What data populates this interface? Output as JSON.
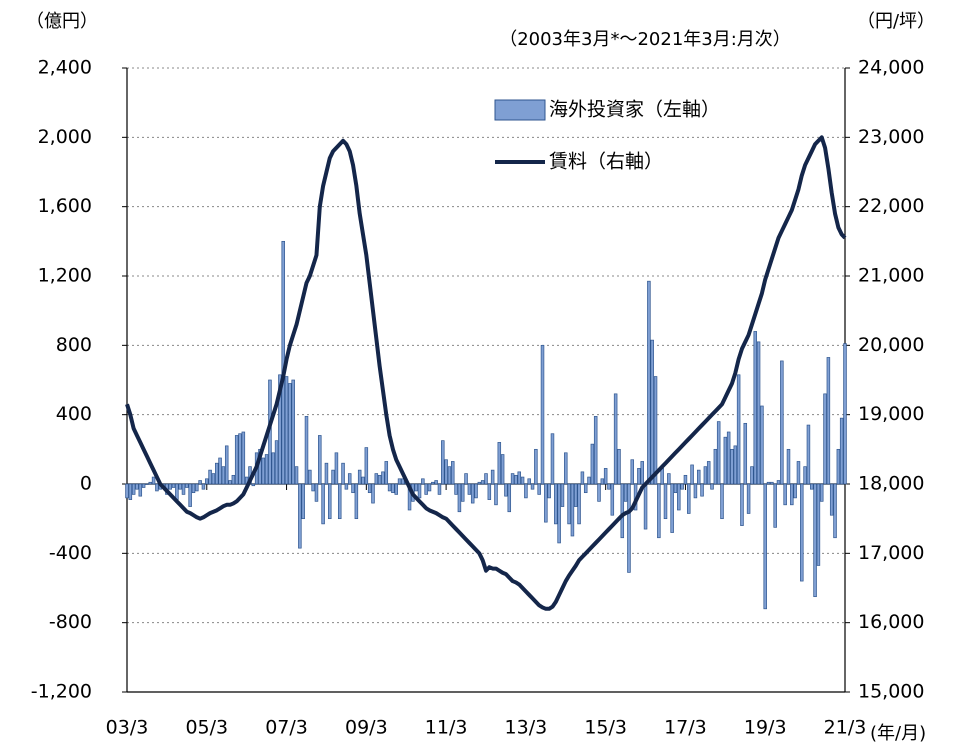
{
  "chart_data": {
    "type": "bar",
    "subtitle": "（2003年3月*～2021年3月:月次）",
    "y_label": "（億円）",
    "y2_label": "（円/坪）",
    "x_label": "(年/月)",
    "categories": [
      "03/3",
      null,
      null,
      null,
      null,
      null,
      null,
      null,
      null,
      null,
      null,
      null,
      null,
      null,
      null,
      null,
      null,
      null,
      null,
      null,
      null,
      null,
      null,
      null,
      "05/3",
      null,
      null,
      null,
      null,
      null,
      null,
      null,
      null,
      null,
      null,
      null,
      null,
      null,
      null,
      null,
      null,
      null,
      null,
      null,
      null,
      null,
      null,
      null,
      "07/3",
      null,
      null,
      null,
      null,
      null,
      null,
      null,
      null,
      null,
      null,
      null,
      null,
      null,
      null,
      null,
      null,
      null,
      null,
      null,
      null,
      null,
      null,
      null,
      "09/3",
      null,
      null,
      null,
      null,
      null,
      null,
      null,
      null,
      null,
      null,
      null,
      null,
      null,
      null,
      null,
      null,
      null,
      null,
      null,
      null,
      null,
      null,
      null,
      "11/3",
      null,
      null,
      null,
      null,
      null,
      null,
      null,
      null,
      null,
      null,
      null,
      null,
      null,
      null,
      null,
      null,
      null,
      null,
      null,
      null,
      null,
      null,
      null,
      "13/3",
      null,
      null,
      null,
      null,
      null,
      null,
      null,
      null,
      null,
      null,
      null,
      null,
      null,
      null,
      null,
      null,
      null,
      null,
      null,
      null,
      null,
      null,
      null,
      "15/3",
      null,
      null,
      null,
      null,
      null,
      null,
      null,
      null,
      null,
      null,
      null,
      null,
      null,
      null,
      null,
      null,
      null,
      null,
      null,
      null,
      null,
      null,
      null,
      "17/3",
      null,
      null,
      null,
      null,
      null,
      null,
      null,
      null,
      null,
      null,
      null,
      null,
      null,
      null,
      null,
      null,
      null,
      null,
      null,
      null,
      null,
      null,
      null,
      "19/3",
      null,
      null,
      null,
      null,
      null,
      null,
      null,
      null,
      null,
      null,
      null,
      null,
      null,
      null,
      null,
      null,
      null,
      null,
      null,
      null,
      null,
      null,
      null,
      "21/3"
    ],
    "series": [
      {
        "name": "海外投資家（左軸）",
        "type": "bar",
        "color": "#7f9fd3",
        "edge": "#2f568f",
        "values": [
          -80,
          -90,
          -60,
          -30,
          -70,
          -20,
          0,
          10,
          40,
          -40,
          -30,
          -20,
          -60,
          -30,
          -20,
          -90,
          -30,
          -60,
          -20,
          -130,
          -50,
          -40,
          20,
          -30,
          30,
          80,
          60,
          120,
          150,
          100,
          220,
          20,
          50,
          280,
          290,
          300,
          40,
          100,
          -10,
          180,
          200,
          150,
          170,
          600,
          180,
          250,
          630,
          1400,
          620,
          580,
          600,
          100,
          -370,
          -200,
          390,
          80,
          -40,
          -100,
          280,
          -230,
          120,
          -200,
          80,
          180,
          -200,
          120,
          -30,
          60,
          -50,
          -200,
          80,
          40,
          210,
          -50,
          -110,
          60,
          50,
          70,
          130,
          -40,
          -50,
          -60,
          30,
          30,
          20,
          -150,
          -100,
          -40,
          -80,
          30,
          -60,
          -40,
          10,
          20,
          -60,
          250,
          140,
          100,
          130,
          -60,
          -160,
          -100,
          60,
          -60,
          -110,
          -80,
          10,
          20,
          60,
          -90,
          80,
          -120,
          240,
          170,
          -70,
          -160,
          60,
          50,
          70,
          40,
          -80,
          30,
          -30,
          200,
          -60,
          800,
          -220,
          -80,
          290,
          -230,
          -340,
          -130,
          180,
          -230,
          -300,
          -130,
          -230,
          70,
          -50,
          40,
          230,
          390,
          -100,
          30,
          90,
          -30,
          -180,
          520,
          200,
          -310,
          -100,
          -510,
          140,
          -150,
          90,
          130,
          -260,
          1170,
          830,
          620,
          -310,
          90,
          -200,
          60,
          -280,
          -50,
          -150,
          -30,
          50,
          -170,
          110,
          -80,
          80,
          -70,
          100,
          130,
          -30,
          200,
          360,
          -200,
          270,
          300,
          200,
          220,
          630,
          -240,
          350,
          -170,
          100,
          880,
          820,
          450,
          -720,
          10,
          10,
          -250,
          20,
          710,
          -120,
          200,
          -120,
          -80,
          130,
          -560,
          100,
          340,
          -30,
          -650,
          -470,
          -100,
          520,
          730,
          -180,
          -310,
          200,
          380,
          810
        ]
      },
      {
        "name": "賃料（右軸）",
        "type": "line",
        "axis": "y2",
        "color": "#14264a",
        "values": [
          19150,
          19000,
          18800,
          18700,
          18600,
          18500,
          18400,
          18300,
          18200,
          18100,
          18000,
          17950,
          17900,
          17850,
          17800,
          17750,
          17700,
          17650,
          17600,
          17580,
          17550,
          17520,
          17500,
          17520,
          17550,
          17580,
          17600,
          17620,
          17650,
          17680,
          17700,
          17700,
          17720,
          17750,
          17800,
          17850,
          17950,
          18050,
          18150,
          18250,
          18400,
          18550,
          18700,
          18850,
          19000,
          19150,
          19350,
          19550,
          19800,
          20000,
          20150,
          20300,
          20500,
          20700,
          20900,
          21000,
          21150,
          21300,
          22000,
          22300,
          22500,
          22700,
          22800,
          22850,
          22900,
          22950,
          22900,
          22800,
          22600,
          22300,
          21900,
          21600,
          21300,
          20900,
          20500,
          20100,
          19700,
          19350,
          19000,
          18700,
          18500,
          18350,
          18250,
          18150,
          18050,
          17950,
          17850,
          17800,
          17750,
          17700,
          17650,
          17620,
          17600,
          17580,
          17550,
          17520,
          17500,
          17450,
          17400,
          17350,
          17300,
          17250,
          17200,
          17150,
          17100,
          17050,
          17000,
          16900,
          16750,
          16800,
          16780,
          16780,
          16750,
          16720,
          16700,
          16650,
          16600,
          16580,
          16550,
          16500,
          16450,
          16400,
          16350,
          16300,
          16250,
          16220,
          16200,
          16200,
          16230,
          16300,
          16400,
          16500,
          16600,
          16680,
          16750,
          16820,
          16900,
          16950,
          17000,
          17050,
          17100,
          17150,
          17200,
          17250,
          17300,
          17350,
          17400,
          17450,
          17500,
          17550,
          17580,
          17600,
          17650,
          17750,
          17850,
          17950,
          18000,
          18050,
          18100,
          18150,
          18200,
          18250,
          18300,
          18350,
          18400,
          18450,
          18500,
          18550,
          18600,
          18650,
          18700,
          18750,
          18800,
          18850,
          18900,
          18950,
          19000,
          19050,
          19100,
          19150,
          19250,
          19350,
          19450,
          19600,
          19800,
          19950,
          20050,
          20150,
          20300,
          20450,
          20600,
          20750,
          20950,
          21100,
          21250,
          21400,
          21550,
          21650,
          21750,
          21850,
          21950,
          22100,
          22250,
          22450,
          22600,
          22700,
          22800,
          22900,
          22950,
          23000,
          22850,
          22550,
          22200,
          21900,
          21700,
          21600,
          21550
        ]
      }
    ],
    "ylim": [
      -1200,
      2400
    ],
    "yticks": [
      {
        "value": -1200,
        "label": "-1,200"
      },
      -800,
      -400,
      0,
      400,
      800,
      {
        "value": 1200,
        "label": "1,200"
      },
      {
        "value": 1600,
        "label": "1,600"
      },
      {
        "value": 2000,
        "label": "2,000"
      },
      {
        "value": 2400,
        "label": "2,400"
      }
    ],
    "y2lim": [
      15000,
      24000
    ],
    "y2ticks": [
      {
        "value": 15000,
        "label": "15,000"
      },
      {
        "value": 16000,
        "label": "16,000"
      },
      {
        "value": 17000,
        "label": "17,000"
      },
      {
        "value": 18000,
        "label": "18,000"
      },
      {
        "value": 19000,
        "label": "19,000"
      },
      {
        "value": 20000,
        "label": "20,000"
      },
      {
        "value": 21000,
        "label": "21,000"
      },
      {
        "value": 22000,
        "label": "22,000"
      },
      {
        "value": 23000,
        "label": "23,000"
      },
      {
        "value": 24000,
        "label": "24,000"
      }
    ],
    "grid": true
  }
}
